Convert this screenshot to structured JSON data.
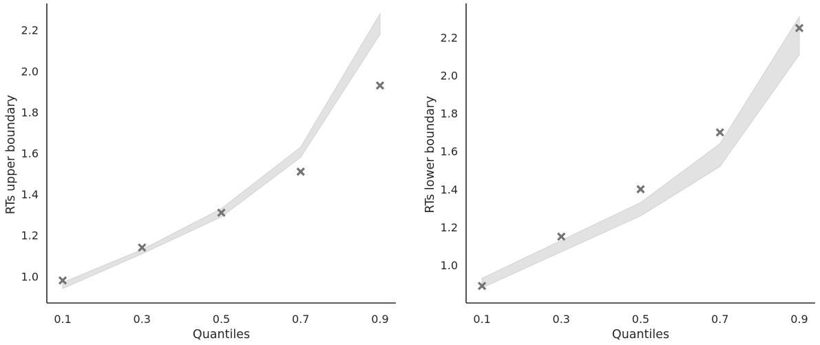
{
  "colors": {
    "band": "#e2e2e2",
    "marker": "#737373",
    "axis": "#262626"
  },
  "chart_data": [
    {
      "type": "line",
      "xlabel": "Quantiles",
      "ylabel": "RTs upper boundary",
      "x": [
        0.1,
        0.3,
        0.5,
        0.7,
        0.9
      ],
      "xticks": [
        "0.1",
        "0.3",
        "0.5",
        "0.7",
        "0.9"
      ],
      "yticks": [
        "1.0",
        "1.2",
        "1.4",
        "1.6",
        "1.8",
        "2.0",
        "2.2"
      ],
      "ylim": [
        0.87,
        2.33
      ],
      "xlim": [
        0.06,
        0.94
      ],
      "grid": false,
      "series": [
        {
          "kind": "band",
          "lower": [
            0.94,
            1.11,
            1.29,
            1.58,
            2.18
          ],
          "upper": [
            0.97,
            1.13,
            1.33,
            1.63,
            2.28
          ]
        },
        {
          "kind": "scatter",
          "marker": "x",
          "values": [
            0.98,
            1.14,
            1.31,
            1.51,
            1.93
          ]
        }
      ]
    },
    {
      "type": "line",
      "xlabel": "Quantiles",
      "ylabel": "RTs lower boundary",
      "x": [
        0.1,
        0.3,
        0.5,
        0.7,
        0.9
      ],
      "xticks": [
        "0.1",
        "0.3",
        "0.5",
        "0.7",
        "0.9"
      ],
      "yticks": [
        "1.0",
        "1.2",
        "1.4",
        "1.6",
        "1.8",
        "2.0",
        "2.2"
      ],
      "ylim": [
        0.8,
        2.38
      ],
      "xlim": [
        0.06,
        0.94
      ],
      "grid": false,
      "series": [
        {
          "kind": "band",
          "lower": [
            0.88,
            1.07,
            1.26,
            1.52,
            2.11
          ],
          "upper": [
            0.93,
            1.13,
            1.33,
            1.64,
            2.31
          ]
        },
        {
          "kind": "scatter",
          "marker": "x",
          "values": [
            0.89,
            1.15,
            1.4,
            1.7,
            2.25
          ]
        }
      ]
    }
  ]
}
